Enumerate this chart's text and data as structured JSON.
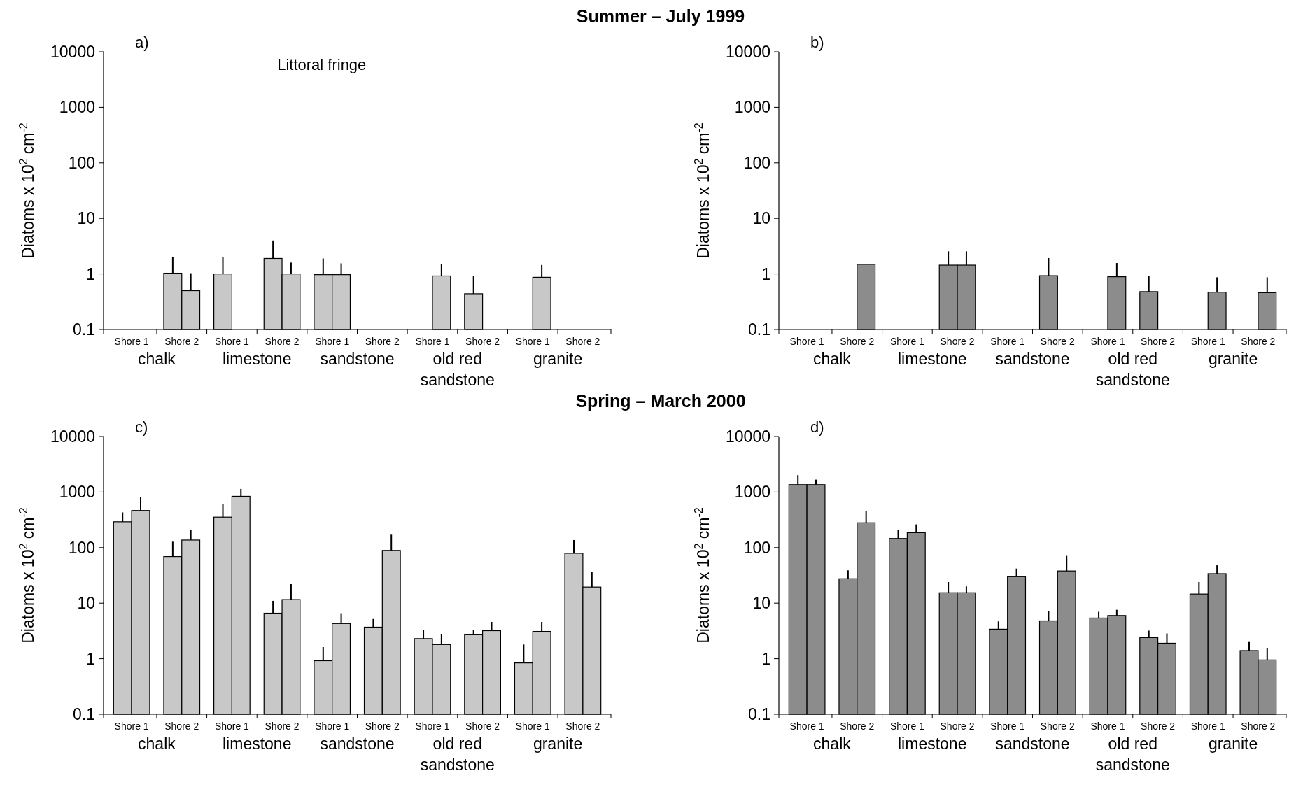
{
  "chart_data": [
    {
      "type": "bar",
      "title": "Summer – July 1999",
      "ylabel": "Diatoms x 10$^{2}$ cm$^{-2}$",
      "log": true,
      "ylim": [
        0.1,
        10000
      ],
      "yticks": [
        0.1,
        1,
        10,
        100,
        1000,
        10000
      ],
      "categories": [
        "Shore 1",
        "Shore 2",
        "Shore 1",
        "Shore 2",
        "Shore 1",
        "Shore 2",
        "Shore 1",
        "Shore 2",
        "Shore 1",
        "Shore 2"
      ],
      "annotations": [
        "a)",
        "chalk",
        "limestone",
        "sandstone",
        "old red sandstone",
        "granite",
        "Littoral fringe"
      ],
      "series": [
        {
          "color": "#c8c8c8",
          "values": [
            null,
            1.03,
            1.0,
            1.9,
            0.97,
            null,
            null,
            0.44,
            null,
            null
          ],
          "errors": [
            null,
            [
              1.03,
              2.0
            ],
            [
              1.0,
              2.0
            ],
            [
              1.9,
              4.0
            ],
            [
              0.97,
              1.9
            ],
            null,
            null,
            [
              0.44,
              0.92
            ],
            null,
            null
          ]
        },
        {
          "color": "#c8c8c8",
          "values": [
            null,
            0.5,
            null,
            1.0,
            0.97,
            null,
            0.92,
            null,
            0.87,
            null
          ],
          "errors": [
            null,
            [
              0.5,
              1.03
            ],
            null,
            [
              1.0,
              1.6
            ],
            [
              0.97,
              1.55
            ],
            null,
            [
              0.92,
              1.5
            ],
            null,
            [
              0.87,
              1.45
            ],
            null
          ]
        }
      ]
    },
    {
      "type": "bar",
      "ylabel": "Diatoms x 10$^{2}$ cm$^{-2}$",
      "log": true,
      "ylim": [
        0.1,
        10000
      ],
      "yticks": [
        0.1,
        1,
        10,
        100,
        1000,
        10000
      ],
      "categories": [
        "Shore 1",
        "Shore 2",
        "Shore 1",
        "Shore 2",
        "Shore 1",
        "Shore 2",
        "Shore 1",
        "Shore 2",
        "Shore 1",
        "Shore 2"
      ],
      "annotations": [
        "b)",
        "chalk",
        "limestone",
        "sandstone",
        "old red sandstone",
        "granite"
      ],
      "series": [
        {
          "color": "#8c8c8c",
          "values": [
            null,
            null,
            null,
            1.44,
            null,
            0.93,
            null,
            0.48,
            null,
            null
          ],
          "errors": [
            null,
            null,
            null,
            [
              1.44,
              2.55
            ],
            null,
            [
              0.93,
              1.93
            ],
            null,
            [
              0.48,
              0.92
            ],
            null,
            null
          ]
        },
        {
          "color": "#8c8c8c",
          "values": [
            null,
            1.49,
            null,
            1.44,
            null,
            null,
            0.89,
            null,
            0.47,
            0.46
          ],
          "errors": [
            null,
            null,
            null,
            [
              1.44,
              2.55
            ],
            null,
            null,
            [
              0.89,
              1.57
            ],
            null,
            [
              0.47,
              0.87
            ],
            [
              0.46,
              0.87
            ]
          ]
        }
      ]
    },
    {
      "type": "bar",
      "title": "Spring – March 2000",
      "ylabel": "Diatoms x 10$^{2}$ cm$^{-2}$",
      "log": true,
      "ylim": [
        0.1,
        10000
      ],
      "yticks": [
        0.1,
        1,
        10,
        100,
        1000,
        10000
      ],
      "categories": [
        "Shore 1",
        "Shore 2",
        "Shore 1",
        "Shore 2",
        "Shore 1",
        "Shore 2",
        "Shore 1",
        "Shore 2",
        "Shore 1",
        "Shore 2"
      ],
      "annotations": [
        "c)",
        "chalk",
        "limestone",
        "sandstone",
        "old red sandstone",
        "granite"
      ],
      "series": [
        {
          "color": "#c8c8c8",
          "values": [
            292,
            69,
            354,
            6.6,
            0.92,
            3.7,
            2.3,
            2.7,
            0.84,
            79
          ],
          "errors": [
            [
              292,
              430
            ],
            [
              69,
              128
            ],
            [
              354,
              615
            ],
            [
              6.6,
              11
            ],
            [
              0.92,
              1.62
            ],
            [
              3.7,
              5.2
            ],
            [
              2.3,
              3.3
            ],
            [
              2.7,
              3.3
            ],
            [
              0.84,
              1.8
            ],
            [
              79,
              137
            ]
          ]
        },
        {
          "color": "#c8c8c8",
          "values": [
            466,
            137,
            839,
            11.6,
            4.3,
            89,
            1.8,
            3.2,
            3.1,
            19.5
          ],
          "errors": [
            [
              466,
              810
            ],
            [
              137,
              211
            ],
            [
              839,
              1140
            ],
            [
              11.6,
              22
            ],
            [
              4.3,
              6.6
            ],
            [
              89,
              171
            ],
            [
              1.8,
              2.8
            ],
            [
              3.2,
              4.6
            ],
            [
              3.1,
              4.6
            ],
            [
              19.5,
              36
            ]
          ]
        }
      ]
    },
    {
      "type": "bar",
      "ylabel": "Diatoms x 10$^{2}$ cm$^{-2}$",
      "log": true,
      "ylim": [
        0.1,
        10000
      ],
      "yticks": [
        0.1,
        1,
        10,
        100,
        1000,
        10000
      ],
      "categories": [
        "Shore 1",
        "Shore 2",
        "Shore 1",
        "Shore 2",
        "Shore 1",
        "Shore 2",
        "Shore 1",
        "Shore 2",
        "Shore 1",
        "Shore 2"
      ],
      "annotations": [
        "d)",
        "chalk",
        "limestone",
        "sandstone",
        "old red sandstone",
        "granite"
      ],
      "series": [
        {
          "color": "#8c8c8c",
          "values": [
            1360,
            27.5,
            146,
            15.4,
            3.4,
            4.8,
            5.4,
            2.4,
            14.6,
            1.4
          ],
          "errors": [
            [
              1360,
              2020
            ],
            [
              27.5,
              39
            ],
            [
              146,
              209
            ],
            [
              15.4,
              24
            ],
            [
              3.4,
              4.7
            ],
            [
              4.8,
              7.3
            ],
            [
              5.4,
              7
            ],
            [
              2.4,
              3.2
            ],
            [
              14.6,
              24
            ],
            [
              1.4,
              2
            ]
          ]
        },
        {
          "color": "#8c8c8c",
          "values": [
            1360,
            280,
            186,
            15.4,
            30,
            38,
            6.0,
            1.9,
            34,
            0.95
          ],
          "errors": [
            [
              1360,
              1675
            ],
            [
              280,
              462
            ],
            [
              186,
              262
            ],
            [
              15.4,
              20
            ],
            [
              30,
              42
            ],
            [
              38,
              71
            ],
            [
              6.0,
              7.6
            ],
            [
              1.9,
              2.85
            ],
            [
              34,
              48
            ],
            [
              0.95,
              1.56
            ]
          ]
        }
      ]
    }
  ]
}
